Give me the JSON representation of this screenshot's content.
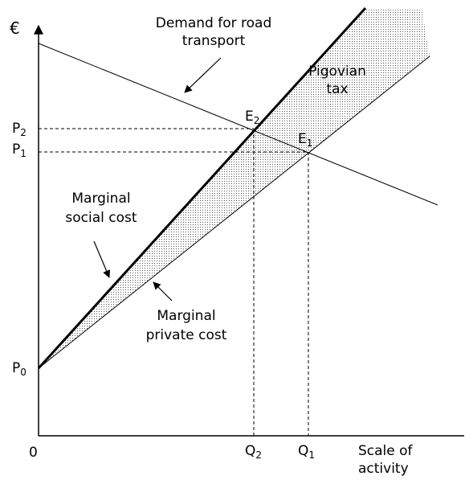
{
  "axis": {
    "y_label": "€",
    "origin": "0",
    "x_label": [
      "Scale of",
      "activity"
    ]
  },
  "prices": [
    {
      "base": "P",
      "sub": "2"
    },
    {
      "base": "P",
      "sub": "1"
    },
    {
      "base": "P",
      "sub": "0"
    }
  ],
  "quantities": [
    {
      "base": "Q",
      "sub": "2"
    },
    {
      "base": "Q",
      "sub": "1"
    }
  ],
  "equilibria": [
    {
      "base": "E",
      "sub": "2"
    },
    {
      "base": "E",
      "sub": "1"
    }
  ],
  "curves": {
    "demand": [
      "Demand for road",
      "transport"
    ],
    "social": [
      "Marginal",
      "social cost"
    ],
    "private": [
      "Marginal",
      "private cost"
    ],
    "tax": [
      "Pigovian",
      "tax"
    ]
  }
}
